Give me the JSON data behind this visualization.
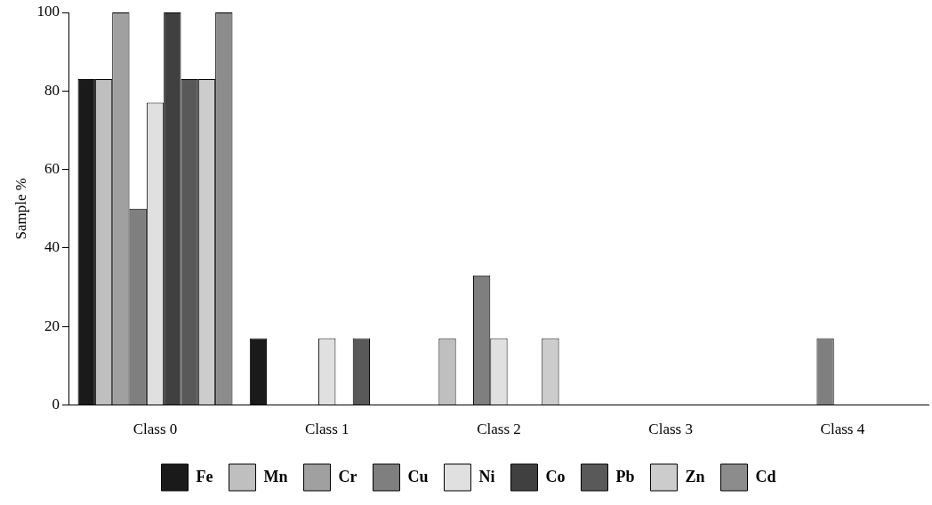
{
  "chart_data": {
    "type": "bar",
    "ylabel": "Sample %",
    "categories": [
      "Class 0",
      "Class 1",
      "Class 2",
      "Class 3",
      "Class 4"
    ],
    "series": [
      {
        "name": "Fe",
        "color": "#1a1a1a",
        "values": [
          83,
          17,
          0,
          0,
          0
        ]
      },
      {
        "name": "Mn",
        "color": "#bfbfbf",
        "values": [
          83,
          0,
          17,
          0,
          0
        ]
      },
      {
        "name": "Cr",
        "color": "#a0a0a0",
        "values": [
          100,
          0,
          0,
          0,
          0
        ]
      },
      {
        "name": "Cu",
        "color": "#7f7f7f",
        "values": [
          50,
          0,
          33,
          0,
          17
        ]
      },
      {
        "name": "Ni",
        "color": "#e0e0e0",
        "values": [
          77,
          17,
          17,
          0,
          0
        ]
      },
      {
        "name": "Co",
        "color": "#404040",
        "values": [
          100,
          0,
          0,
          0,
          0
        ]
      },
      {
        "name": "Pb",
        "color": "#595959",
        "values": [
          83,
          17,
          0,
          0,
          0
        ]
      },
      {
        "name": "Zn",
        "color": "#cccccc",
        "values": [
          83,
          0,
          17,
          0,
          0
        ]
      },
      {
        "name": "Cd",
        "color": "#8c8c8c",
        "values": [
          100,
          0,
          0,
          0,
          0
        ]
      }
    ],
    "ylim": [
      0,
      100
    ],
    "yticks": [
      0,
      20,
      40,
      60,
      80,
      100
    ],
    "grid": false,
    "legend": "bottom"
  }
}
